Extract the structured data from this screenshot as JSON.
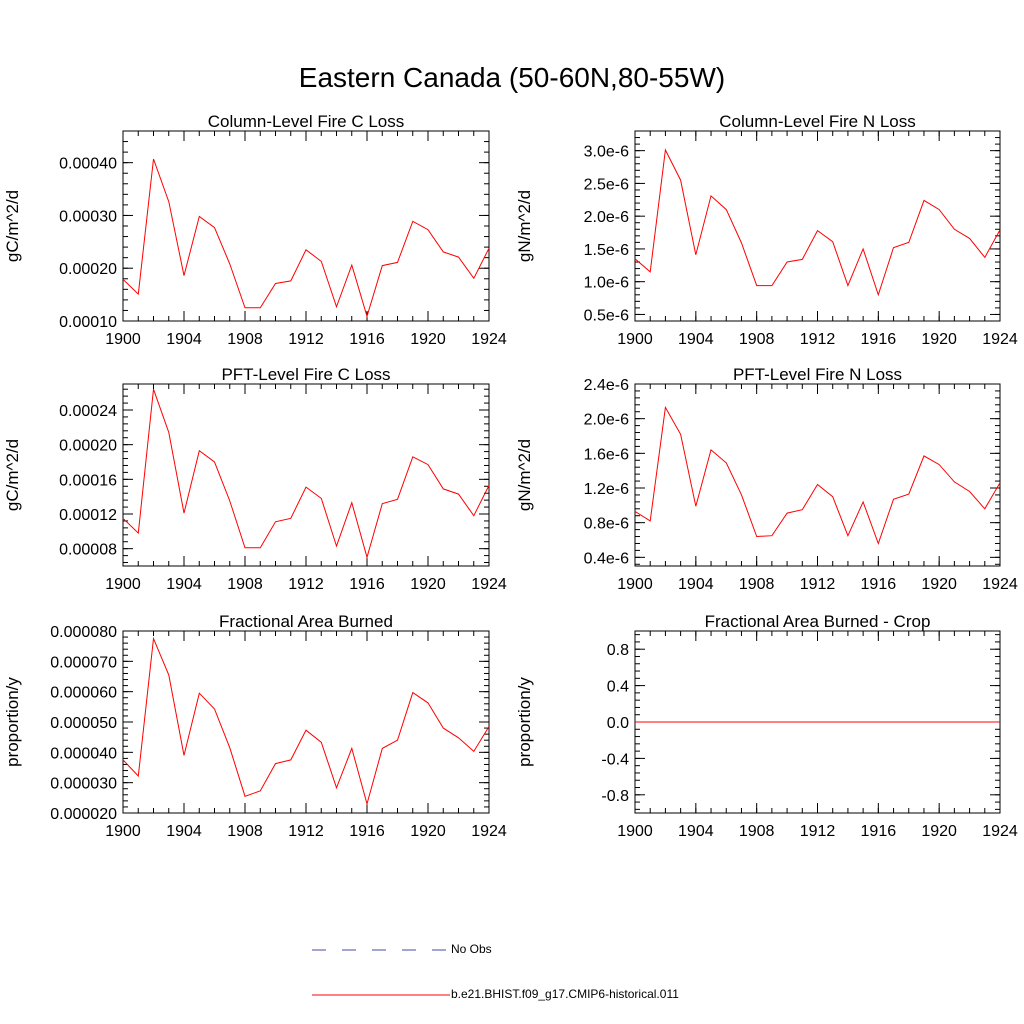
{
  "title": "Eastern Canada (50-60N,80-55W)",
  "legend": {
    "items": [
      {
        "label": "No Obs",
        "color": "#4a4aa0",
        "style": "dashed"
      },
      {
        "label": "b.e21.BHIST.f09_g17.CMIP6-historical.011",
        "color": "#ff0000",
        "style": "solid"
      }
    ]
  },
  "chart_data": [
    {
      "type": "line",
      "title": "Column-Level Fire C Loss",
      "xlabel": "",
      "ylabel": "gC/m^2/d",
      "xlim": [
        1900,
        1924
      ],
      "ylim": [
        0.0001,
        0.00046
      ],
      "xticks": [
        1900,
        1904,
        1908,
        1912,
        1916,
        1920,
        1924
      ],
      "xtick_labels": [
        "1900",
        "1904",
        "1908",
        "1912",
        "1916",
        "1920",
        "1924"
      ],
      "yticks": [
        0.0001,
        0.0002,
        0.0003,
        0.0004
      ],
      "ytick_labels": [
        "0.00010",
        "0.00020",
        "0.00030",
        "0.00040"
      ],
      "x": [
        1900,
        1901,
        1902,
        1903,
        1904,
        1905,
        1906,
        1907,
        1908,
        1909,
        1910,
        1911,
        1912,
        1913,
        1914,
        1915,
        1916,
        1917,
        1918,
        1919,
        1920,
        1921,
        1922,
        1923,
        1924
      ],
      "series": [
        {
          "name": "b.e21.BHIST.f09_g17.CMIP6-historical.011",
          "color": "#ff0000",
          "values": [
            0.000179,
            0.000151,
            0.000407,
            0.000326,
            0.000186,
            0.000298,
            0.000277,
            0.000208,
            0.000125,
            0.000125,
            0.000171,
            0.000176,
            0.000235,
            0.000213,
            0.000127,
            0.000206,
            0.000109,
            0.000205,
            0.000211,
            0.000289,
            0.000273,
            0.000231,
            0.000221,
            0.000181,
            0.000238
          ]
        }
      ]
    },
    {
      "type": "line",
      "title": "Column-Level Fire N Loss",
      "xlabel": "",
      "ylabel": "gN/m^2/d",
      "xlim": [
        1900,
        1924
      ],
      "ylim": [
        4e-07,
        3.3e-06
      ],
      "xticks": [
        1900,
        1904,
        1908,
        1912,
        1916,
        1920,
        1924
      ],
      "xtick_labels": [
        "1900",
        "1904",
        "1908",
        "1912",
        "1916",
        "1920",
        "1924"
      ],
      "yticks": [
        5e-07,
        1e-06,
        1.5e-06,
        2e-06,
        2.5e-06,
        3e-06
      ],
      "ytick_labels": [
        "0.5e-6",
        "1.0e-6",
        "1.5e-6",
        "2.0e-6",
        "2.5e-6",
        "3.0e-6"
      ],
      "x": [
        1900,
        1901,
        1902,
        1903,
        1904,
        1905,
        1906,
        1907,
        1908,
        1909,
        1910,
        1911,
        1912,
        1913,
        1914,
        1915,
        1916,
        1917,
        1918,
        1919,
        1920,
        1921,
        1922,
        1923,
        1924
      ],
      "series": [
        {
          "name": "b.e21.BHIST.f09_g17.CMIP6-historical.011",
          "color": "#ff0000",
          "values": [
            1.35e-06,
            1.15e-06,
            3.01e-06,
            2.55e-06,
            1.41e-06,
            2.31e-06,
            2.1e-06,
            1.59e-06,
            9.4e-07,
            9.4e-07,
            1.3e-06,
            1.34e-06,
            1.78e-06,
            1.61e-06,
            9.4e-07,
            1.5e-06,
            8e-07,
            1.52e-06,
            1.6e-06,
            2.24e-06,
            2.1e-06,
            1.8e-06,
            1.66e-06,
            1.37e-06,
            1.79e-06
          ]
        }
      ]
    },
    {
      "type": "line",
      "title": "PFT-Level Fire C Loss",
      "xlabel": "",
      "ylabel": "gC/m^2/d",
      "xlim": [
        1900,
        1924
      ],
      "ylim": [
        6e-05,
        0.00027
      ],
      "xticks": [
        1900,
        1904,
        1908,
        1912,
        1916,
        1920,
        1924
      ],
      "xtick_labels": [
        "1900",
        "1904",
        "1908",
        "1912",
        "1916",
        "1920",
        "1924"
      ],
      "yticks": [
        8e-05,
        0.00012,
        0.00016,
        0.0002,
        0.00024
      ],
      "ytick_labels": [
        "0.00008",
        "0.00012",
        "0.00016",
        "0.00020",
        "0.00024"
      ],
      "x": [
        1900,
        1901,
        1902,
        1903,
        1904,
        1905,
        1906,
        1907,
        1908,
        1909,
        1910,
        1911,
        1912,
        1913,
        1914,
        1915,
        1916,
        1917,
        1918,
        1919,
        1920,
        1921,
        1922,
        1923,
        1924
      ],
      "series": [
        {
          "name": "b.e21.BHIST.f09_g17.CMIP6-historical.011",
          "color": "#ff0000",
          "values": [
            0.000115,
            9.8e-05,
            0.000264,
            0.000214,
            0.000121,
            0.000193,
            0.00018,
            0.000135,
            8.1e-05,
            8.1e-05,
            0.000111,
            0.000115,
            0.000151,
            0.000138,
            8.3e-05,
            0.000133,
            7e-05,
            0.000132,
            0.000137,
            0.000186,
            0.000177,
            0.000149,
            0.000143,
            0.000118,
            0.000153
          ]
        }
      ]
    },
    {
      "type": "line",
      "title": "PFT-Level Fire N Loss",
      "xlabel": "",
      "ylabel": "gN/m^2/d",
      "xlim": [
        1900,
        1924
      ],
      "ylim": [
        3e-07,
        2.4e-06
      ],
      "xticks": [
        1900,
        1904,
        1908,
        1912,
        1916,
        1920,
        1924
      ],
      "xtick_labels": [
        "1900",
        "1904",
        "1908",
        "1912",
        "1916",
        "1920",
        "1924"
      ],
      "yticks": [
        4e-07,
        8e-07,
        1.2e-06,
        1.6e-06,
        2e-06,
        2.4e-06
      ],
      "ytick_labels": [
        "0.4e-6",
        "0.8e-6",
        "1.2e-6",
        "1.6e-6",
        "2.0e-6",
        "2.4e-6"
      ],
      "x": [
        1900,
        1901,
        1902,
        1903,
        1904,
        1905,
        1906,
        1907,
        1908,
        1909,
        1910,
        1911,
        1912,
        1913,
        1914,
        1915,
        1916,
        1917,
        1918,
        1919,
        1920,
        1921,
        1922,
        1923,
        1924
      ],
      "series": [
        {
          "name": "b.e21.BHIST.f09_g17.CMIP6-historical.011",
          "color": "#ff0000",
          "values": [
            9.3e-07,
            8.2e-07,
            2.13e-06,
            1.82e-06,
            9.9e-07,
            1.64e-06,
            1.49e-06,
            1.12e-06,
            6.4e-07,
            6.5e-07,
            9.1e-07,
            9.5e-07,
            1.24e-06,
            1.1e-06,
            6.5e-07,
            1.04e-06,
            5.6e-07,
            1.07e-06,
            1.13e-06,
            1.57e-06,
            1.47e-06,
            1.27e-06,
            1.16e-06,
            9.6e-07,
            1.26e-06
          ]
        }
      ]
    },
    {
      "type": "line",
      "title": "Fractional Area Burned",
      "xlabel": "",
      "ylabel": "proportion/y",
      "xlim": [
        1900,
        1924
      ],
      "ylim": [
        2e-05,
        8e-05
      ],
      "xticks": [
        1900,
        1904,
        1908,
        1912,
        1916,
        1920,
        1924
      ],
      "xtick_labels": [
        "1900",
        "1904",
        "1908",
        "1912",
        "1916",
        "1920",
        "1924"
      ],
      "yticks": [
        2e-05,
        3e-05,
        4e-05,
        5e-05,
        6e-05,
        7e-05,
        8e-05
      ],
      "ytick_labels": [
        "0.000020",
        "0.000030",
        "0.000040",
        "0.000050",
        "0.000060",
        "0.000070",
        "0.000080"
      ],
      "x": [
        1900,
        1901,
        1902,
        1903,
        1904,
        1905,
        1906,
        1907,
        1908,
        1909,
        1910,
        1911,
        1912,
        1913,
        1914,
        1915,
        1916,
        1917,
        1918,
        1919,
        1920,
        1921,
        1922,
        1923,
        1924
      ],
      "series": [
        {
          "name": "b.e21.BHIST.f09_g17.CMIP6-historical.011",
          "color": "#ff0000",
          "values": [
            3.75e-05,
            3.22e-05,
            7.75e-05,
            6.55e-05,
            3.9e-05,
            5.95e-05,
            5.43e-05,
            4.15e-05,
            2.55e-05,
            2.73e-05,
            3.63e-05,
            3.75e-05,
            4.73e-05,
            4.33e-05,
            2.83e-05,
            4.13e-05,
            2.3e-05,
            4.13e-05,
            4.4e-05,
            5.97e-05,
            5.63e-05,
            4.8e-05,
            4.48e-05,
            4.03e-05,
            4.85e-05
          ]
        }
      ]
    },
    {
      "type": "line",
      "title": "Fractional Area Burned - Crop",
      "xlabel": "",
      "ylabel": "proportion/y",
      "xlim": [
        1900,
        1924
      ],
      "ylim": [
        -1.0,
        1.0
      ],
      "xticks": [
        1900,
        1904,
        1908,
        1912,
        1916,
        1920,
        1924
      ],
      "xtick_labels": [
        "1900",
        "1904",
        "1908",
        "1912",
        "1916",
        "1920",
        "1924"
      ],
      "yticks": [
        -0.8,
        -0.4,
        0.0,
        0.4,
        0.8
      ],
      "ytick_labels": [
        "-0.8",
        "-0.4",
        "0.0",
        "0.4",
        "0.8"
      ],
      "x": [
        1900,
        1901,
        1902,
        1903,
        1904,
        1905,
        1906,
        1907,
        1908,
        1909,
        1910,
        1911,
        1912,
        1913,
        1914,
        1915,
        1916,
        1917,
        1918,
        1919,
        1920,
        1921,
        1922,
        1923,
        1924
      ],
      "series": [
        {
          "name": "b.e21.BHIST.f09_g17.CMIP6-historical.011",
          "color": "#ff0000",
          "values": [
            0,
            0,
            0,
            0,
            0,
            0,
            0,
            0,
            0,
            0,
            0,
            0,
            0,
            0,
            0,
            0,
            0,
            0,
            0,
            0,
            0,
            0,
            0,
            0,
            0
          ]
        }
      ]
    }
  ]
}
